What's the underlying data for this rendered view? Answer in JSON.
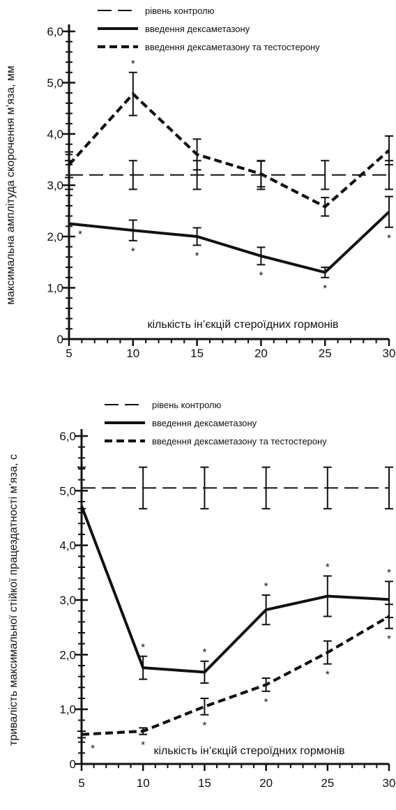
{
  "chart_data": [
    {
      "type": "line",
      "title": "",
      "xlabel": "",
      "ylabel": "максимальна амплітуда скорочення м’яза, мм",
      "note": "кількість ін’єкцій стероїдних гормонів",
      "x": [
        5,
        10,
        15,
        20,
        25,
        30
      ],
      "xlim": [
        5,
        30
      ],
      "ylim": [
        0,
        6
      ],
      "x_ticks": [
        "5",
        "10",
        "15",
        "20",
        "25",
        "30"
      ],
      "y_ticks": [
        "0",
        "1,0",
        "2,0",
        "3,0",
        "4,0",
        "5,0",
        "6,0"
      ],
      "series": [
        {
          "name": "рівень контролю",
          "style": "long-dash",
          "color": "#111111",
          "values": [
            3.2,
            3.2,
            3.2,
            3.2,
            3.2,
            3.2
          ],
          "errors": [
            0.28,
            0.28,
            0.28,
            0.28,
            0.28,
            0.28
          ],
          "stars": [
            false,
            false,
            false,
            false,
            false,
            false
          ]
        },
        {
          "name": "введення дексаметазону",
          "style": "solid",
          "color": "#111111",
          "values": [
            2.25,
            2.12,
            2.0,
            1.62,
            1.3,
            2.48
          ],
          "errors": [
            0.0,
            0.2,
            0.17,
            0.17,
            0.1,
            0.3
          ],
          "stars": [
            true,
            true,
            true,
            true,
            true,
            true
          ]
        },
        {
          "name": "введення дексаметазону та тестостерону",
          "style": "short-dash",
          "color": "#111111",
          "values": [
            3.4,
            4.78,
            3.6,
            3.22,
            2.58,
            3.68
          ],
          "errors": [
            0.25,
            0.42,
            0.3,
            0.25,
            0.18,
            0.28
          ],
          "stars": [
            false,
            true,
            false,
            false,
            false,
            false
          ]
        }
      ]
    },
    {
      "type": "line",
      "title": "",
      "xlabel": "",
      "ylabel": "тривалість максимальної стійкої працездатності м’яза, с",
      "note": "кількість ін’єкцій стероїдних гормонів",
      "x": [
        5,
        10,
        15,
        20,
        25,
        30
      ],
      "xlim": [
        5,
        30
      ],
      "ylim": [
        0,
        6
      ],
      "x_ticks": [
        "5",
        "10",
        "15",
        "20",
        "25",
        "30"
      ],
      "y_ticks": [
        "0",
        "1,0",
        "2,0",
        "3,0",
        "4,0",
        "5,0",
        "6,0"
      ],
      "series": [
        {
          "name": "рівень контролю",
          "style": "long-dash",
          "color": "#111111",
          "values": [
            5.05,
            5.05,
            5.05,
            5.05,
            5.05,
            5.05
          ],
          "errors": [
            0.38,
            0.38,
            0.38,
            0.38,
            0.38,
            0.38
          ],
          "stars": [
            false,
            false,
            false,
            false,
            false,
            false
          ]
        },
        {
          "name": "введення дексаметазону",
          "style": "solid",
          "color": "#111111",
          "values": [
            4.72,
            1.76,
            1.68,
            2.82,
            3.07,
            3.01
          ],
          "errors": [
            0.0,
            0.21,
            0.2,
            0.27,
            0.37,
            0.33
          ],
          "stars": [
            false,
            true,
            true,
            true,
            true,
            true
          ]
        },
        {
          "name": "введення дексаметазону та тестостерону",
          "style": "short-dash",
          "color": "#111111",
          "values": [
            0.54,
            0.6,
            1.05,
            1.45,
            2.04,
            2.7
          ],
          "errors": [
            0.06,
            0.06,
            0.15,
            0.12,
            0.21,
            0.22
          ],
          "stars": [
            true,
            true,
            true,
            true,
            true,
            true
          ]
        }
      ]
    }
  ]
}
